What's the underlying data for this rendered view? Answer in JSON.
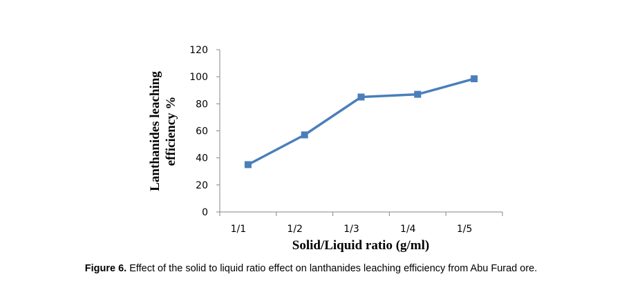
{
  "chart_data": {
    "type": "line",
    "categories": [
      "1/1",
      "1/2",
      "1/3",
      "1/4",
      "1/5"
    ],
    "series": [
      {
        "name": "Lanthanides leaching efficiency",
        "values": [
          35,
          57,
          85,
          87,
          98.5
        ],
        "color": "#4a7ebb",
        "marker": "square"
      }
    ],
    "xlabel": "Solid/Liquid ratio (g/ml)",
    "ylabel_lines": [
      "Lanthanides leaching",
      "efficiency %"
    ],
    "ylim": [
      0,
      120
    ],
    "yticks": [
      0,
      20,
      40,
      60,
      80,
      100,
      120
    ],
    "grid": false,
    "legend": "none"
  },
  "caption": {
    "label": "Figure 6.",
    "text": " Effect of the solid to liquid ratio effect on lanthanides leaching efficiency from Abu Furad ore."
  }
}
